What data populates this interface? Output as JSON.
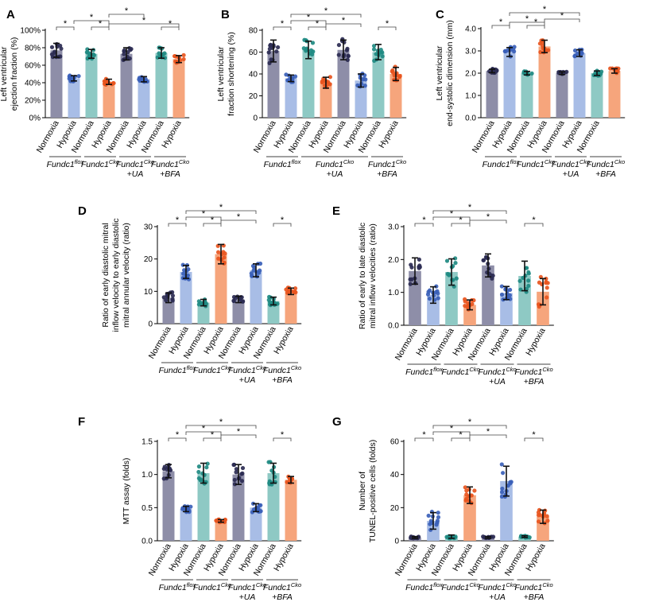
{
  "figure": {
    "colors": {
      "normoxia_flox": "#8e8ea8",
      "hypoxia_flox": "#a8bde6",
      "normoxia_cko": "#8ec9c4",
      "hypoxia_cko": "#f6a57c",
      "normoxia_ua": "#8e8ea8",
      "hypoxia_ua": "#a8bde6",
      "normoxia_bfa": "#8ec9c4",
      "hypoxia_bfa": "#f6a57c",
      "dot_normoxia_flox": "#2b2b52",
      "dot_hypoxia_flox": "#3a5fb8",
      "dot_normoxia_cko": "#1f8a82",
      "dot_hypoxia_cko": "#e8551e"
    },
    "star_symbol": "*"
  },
  "chart_data": [
    {
      "type": "bar",
      "panel_letter": "A",
      "ylabel_lines": [
        "Left ventricular",
        "ejection fraction (%)"
      ],
      "ylim": [
        0,
        100
      ],
      "yticks": [
        0,
        20,
        40,
        60,
        80,
        100
      ],
      "ytick_labels": [
        "0%",
        "20%",
        "40%",
        "60%",
        "80%",
        "100%"
      ],
      "categories": [
        "Normoxia",
        "Hypoxia",
        "Normoxia",
        "Hypoxia",
        "Normoxia",
        "Hypoxia",
        "Normoxia",
        "Hypoxia"
      ],
      "values": [
        77,
        45,
        73,
        41,
        73,
        44,
        74,
        67
      ],
      "errors": [
        8,
        3,
        5,
        3,
        7,
        3,
        6,
        4
      ],
      "groups": [
        {
          "name": "Fundc1",
          "sup": "flox",
          "line2": ""
        },
        {
          "name": "Fundc1",
          "sup": "Cko",
          "line2": ""
        },
        {
          "name": "Fundc1",
          "sup": "Cko",
          "line2": "+UA"
        },
        {
          "name": "Fundc1",
          "sup": "Cko",
          "line2": "+BFA"
        }
      ],
      "brackets": [
        {
          "from": 0,
          "to": 1,
          "level": 0
        },
        {
          "from": 1,
          "to": 3,
          "level": 1
        },
        {
          "from": 2,
          "to": 3,
          "level": 0
        },
        {
          "from": 3,
          "to": 5,
          "level": 2
        },
        {
          "from": 3,
          "to": 7,
          "level": 0.5
        },
        {
          "from": 6,
          "to": 7,
          "level": 0
        }
      ]
    },
    {
      "type": "bar",
      "panel_letter": "B",
      "ylabel_lines": [
        "Left ventricular",
        "fraction shortening (%)"
      ],
      "ylim": [
        0,
        80
      ],
      "yticks": [
        0,
        20,
        40,
        60,
        80
      ],
      "ytick_labels": [
        "0",
        "20",
        "40",
        "60",
        "80"
      ],
      "categories": [
        "Normoxia",
        "Hypoxia",
        "Normoxia",
        "Hypoxia",
        "Normoxia",
        "Hypoxia",
        "Normoxia",
        "Hypoxia"
      ],
      "values": [
        61,
        36,
        62,
        32,
        62,
        34,
        60,
        40
      ],
      "errors": [
        10,
        3,
        8,
        5,
        9,
        6,
        7,
        6
      ],
      "groups": [
        {
          "name": "Fundc1",
          "sup": "flox",
          "line2": ""
        },
        {
          "name": "Fundc1",
          "sup": "Cko",
          "line2": "+UA"
        },
        {
          "name": "Fundc1",
          "sup": "Cko",
          "line2": "+BFA"
        }
      ],
      "group_spans": [
        [
          0,
          1
        ],
        [
          2,
          5
        ],
        [
          6,
          7
        ]
      ],
      "brackets": [
        {
          "from": 0,
          "to": 1,
          "level": 0
        },
        {
          "from": 1,
          "to": 3,
          "level": 1
        },
        {
          "from": 1,
          "to": 5,
          "level": 2
        },
        {
          "from": 2,
          "to": 3,
          "level": 0
        },
        {
          "from": 3,
          "to": 5,
          "level": 0.5
        },
        {
          "from": 6,
          "to": 7,
          "level": 0
        }
      ]
    },
    {
      "type": "bar",
      "panel_letter": "C",
      "ylabel_lines": [
        "Left ventricular",
        "end-systolic dimension (mm)"
      ],
      "ylim": [
        0,
        4
      ],
      "yticks": [
        0,
        1,
        2,
        3,
        4
      ],
      "ytick_labels": [
        "0.0",
        "1.0",
        "2.0",
        "3.0",
        "4.0"
      ],
      "categories": [
        "Normoxia",
        "Hypoxia",
        "Normoxia",
        "Hypoxia",
        "Normoxia",
        "Hypoxia",
        "Normoxia",
        ""
      ],
      "values": [
        2.1,
        2.95,
        2.0,
        3.2,
        2.0,
        2.9,
        2.0,
        2.1
      ],
      "errors": [
        0.08,
        0.2,
        0.08,
        0.28,
        0.06,
        0.15,
        0.1,
        0.1
      ],
      "groups": [
        {
          "name": "Fundc1",
          "sup": "flox",
          "line2": ""
        },
        {
          "name": "Fundc1",
          "sup": "Cko",
          "line2": ""
        },
        {
          "name": "Fundc1",
          "sup": "Cko",
          "line2": "+UA"
        },
        {
          "name": "Fundc1",
          "sup": "Cko",
          "line2": "+BFA"
        }
      ],
      "brackets": [
        {
          "from": 0,
          "to": 1,
          "level": 0
        },
        {
          "from": 1,
          "to": 3,
          "level": 0.5
        },
        {
          "from": 1,
          "to": 5,
          "level": 2
        },
        {
          "from": 2,
          "to": 3,
          "level": 0
        },
        {
          "from": 3,
          "to": 5,
          "level": 1
        }
      ]
    },
    {
      "type": "bar",
      "panel_letter": "D",
      "ylabel_lines": [
        "Ratio of early diastolic mitral",
        "inflow velocity to early diastolic",
        "mitral annular velocity (ratio)"
      ],
      "ylim": [
        0,
        30
      ],
      "yticks": [
        0,
        10,
        20,
        30
      ],
      "ytick_labels": [
        "0",
        "10",
        "20",
        "30"
      ],
      "categories": [
        "Normoxia",
        "Hypoxia",
        "Normoxia",
        "Hypoxia",
        "Normoxia",
        "Hypoxia",
        "Normoxia",
        "Hypoxia"
      ],
      "values": [
        8,
        16,
        6.5,
        21.5,
        7.5,
        16.5,
        7,
        10
      ],
      "errors": [
        1.5,
        2,
        1,
        3,
        1,
        2,
        1.2,
        1
      ],
      "groups": [
        {
          "name": "Fundc1",
          "sup": "flox",
          "line2": ""
        },
        {
          "name": "Fundc1",
          "sup": "Cko",
          "line2": ""
        },
        {
          "name": "Fundc1",
          "sup": "Cko",
          "line2": "+UA"
        },
        {
          "name": "Fundc1",
          "sup": "Cko",
          "line2": "+BFA"
        }
      ],
      "brackets": [
        {
          "from": 0,
          "to": 1,
          "level": 0
        },
        {
          "from": 1,
          "to": 3,
          "level": 1
        },
        {
          "from": 1,
          "to": 5,
          "level": 2
        },
        {
          "from": 2,
          "to": 3,
          "level": 0
        },
        {
          "from": 3,
          "to": 5,
          "level": 0.5
        },
        {
          "from": 6,
          "to": 7,
          "level": 0
        }
      ]
    },
    {
      "type": "bar",
      "panel_letter": "E",
      "ylabel_lines": [
        "Ratio of early to late diastolic",
        "mitral inflow velocities (ratio)"
      ],
      "ylim": [
        0,
        3
      ],
      "yticks": [
        0,
        1,
        2,
        3
      ],
      "ytick_labels": [
        "0.0",
        "1.0",
        "2.0",
        "3.0"
      ],
      "categories": [
        "Normoxia",
        "Hypoxia",
        "Normoxia",
        "Hypoxia",
        "Normoxia",
        "Hypoxia",
        "Normoxia",
        "Hypoxia"
      ],
      "values": [
        1.65,
        0.92,
        1.62,
        0.62,
        1.82,
        0.98,
        1.5,
        1.02
      ],
      "errors": [
        0.4,
        0.25,
        0.4,
        0.15,
        0.35,
        0.2,
        0.45,
        0.4
      ],
      "groups": [
        {
          "name": "Fundc1",
          "sup": "flox",
          "line2": ""
        },
        {
          "name": "Fundc1",
          "sup": "Cko",
          "line2": ""
        },
        {
          "name": "Fundc1",
          "sup": "Cko",
          "line2": "+UA"
        },
        {
          "name": "Fundc1",
          "sup": "Cko",
          "line2": "+BFA"
        }
      ],
      "brackets": [
        {
          "from": 0,
          "to": 1,
          "level": 0
        },
        {
          "from": 1,
          "to": 3,
          "level": 1
        },
        {
          "from": 1,
          "to": 5,
          "level": 2
        },
        {
          "from": 2,
          "to": 3,
          "level": 0
        },
        {
          "from": 3,
          "to": 5,
          "level": 0.5
        },
        {
          "from": 6,
          "to": 7,
          "level": 0
        }
      ]
    },
    {
      "type": "bar",
      "panel_letter": "F",
      "ylabel_lines": [
        "MTT assay (folds)"
      ],
      "ylim": [
        0,
        1.5
      ],
      "yticks": [
        0,
        0.5,
        1.0,
        1.5
      ],
      "ytick_labels": [
        "0.0",
        "0.5",
        "1.0",
        "1.5"
      ],
      "categories": [
        "Normoxia",
        "Hypoxia",
        "Normoxia",
        "Hypoxia",
        "Normoxia",
        "Hypoxia",
        "Normoxia",
        "Hypoxia"
      ],
      "values": [
        1.05,
        0.48,
        1.02,
        0.3,
        1.0,
        0.5,
        1.02,
        0.92
      ],
      "errors": [
        0.1,
        0.04,
        0.15,
        0.02,
        0.15,
        0.06,
        0.15,
        0.05
      ],
      "groups": [
        {
          "name": "Fundc1",
          "sup": "flox",
          "line2": ""
        },
        {
          "name": "Fundc1",
          "sup": "Cko",
          "line2": ""
        },
        {
          "name": "Fundc1",
          "sup": "Cko",
          "line2": "+UA"
        },
        {
          "name": "Fundc1",
          "sup": "Cko",
          "line2": "+BFA"
        }
      ],
      "brackets": [
        {
          "from": 0,
          "to": 1,
          "level": 0
        },
        {
          "from": 1,
          "to": 3,
          "level": 1
        },
        {
          "from": 1,
          "to": 5,
          "level": 2
        },
        {
          "from": 2,
          "to": 3,
          "level": 0
        },
        {
          "from": 3,
          "to": 5,
          "level": 0.5
        },
        {
          "from": 6,
          "to": 7,
          "level": 0
        }
      ]
    },
    {
      "type": "bar",
      "panel_letter": "G",
      "ylabel_lines": [
        "Number of",
        "TUNEL-positive cells (folds)"
      ],
      "ylim": [
        0,
        60
      ],
      "yticks": [
        0,
        20,
        40,
        60
      ],
      "ytick_labels": [
        "0",
        "20",
        "40",
        "60"
      ],
      "categories": [
        "Normoxia",
        "Hypoxia",
        "Normoxia",
        "Hypoxia",
        "Normoxia",
        "Hypoxia",
        "Normoxia",
        "Hypoxia"
      ],
      "values": [
        2,
        12,
        2.5,
        27.5,
        2,
        36,
        2.5,
        14.5
      ],
      "errors": [
        0.5,
        5,
        1,
        5,
        0.5,
        9,
        0.5,
        4
      ],
      "groups": [
        {
          "name": "Fundc1",
          "sup": "flox",
          "line2": ""
        },
        {
          "name": "Fundc1",
          "sup": "Cko",
          "line2": ""
        },
        {
          "name": "Fundc1",
          "sup": "Cko",
          "line2": "+UA"
        },
        {
          "name": "Fundc1",
          "sup": "Cko",
          "line2": "+BFA"
        }
      ],
      "brackets": [
        {
          "from": 0,
          "to": 1,
          "level": 0
        },
        {
          "from": 1,
          "to": 3,
          "level": 1
        },
        {
          "from": 1,
          "to": 5,
          "level": 2
        },
        {
          "from": 2,
          "to": 3,
          "level": 0
        },
        {
          "from": 3,
          "to": 5,
          "level": 0.5
        },
        {
          "from": 6,
          "to": 7,
          "level": 0
        }
      ]
    }
  ]
}
